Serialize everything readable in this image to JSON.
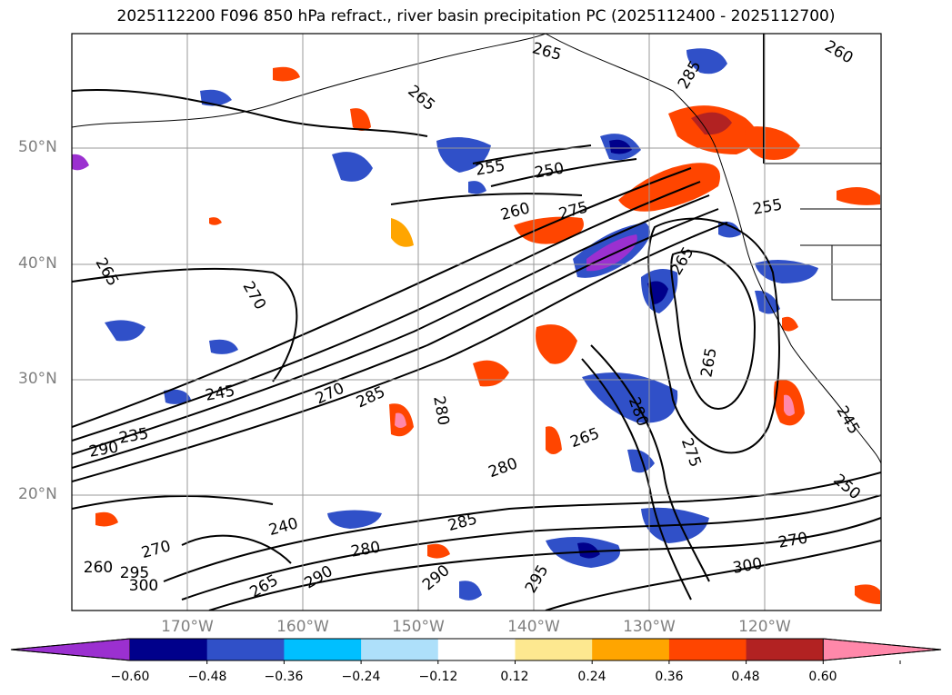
{
  "title": "2025112200 F096 850 hPa refract., river basin precipitation PC (2025112400 - 2025112700)",
  "lat_labels": [
    "50°N",
    "40°N",
    "30°N",
    "20°N"
  ],
  "lon_labels": [
    "170°W",
    "160°W",
    "150°W",
    "140°W",
    "130°W",
    "120°W"
  ],
  "colorbar": {
    "ticks": [
      "−0.60",
      "−0.48",
      "−0.36",
      "−0.24",
      "−0.12",
      "0.12",
      "0.24",
      "0.36",
      "0.48",
      "0.60"
    ],
    "colors": [
      "#9b30d0",
      "#00008b",
      "#3050c8",
      "#00bfff",
      "#aee0fa",
      "#ffffff",
      "#fde890",
      "#ffa500",
      "#ff4500",
      "#b22222",
      "#ff88aa"
    ]
  },
  "contour_labels": [
    "265",
    "260",
    "265",
    "255",
    "250",
    "260",
    "275",
    "255",
    "265",
    "270",
    "265",
    "245",
    "270",
    "285",
    "280",
    "265",
    "235",
    "290",
    "280",
    "265",
    "280",
    "275",
    "250",
    "240",
    "285",
    "270",
    "280",
    "270",
    "260",
    "290",
    "295",
    "300",
    "265",
    "290",
    "295",
    "300",
    "285",
    "245"
  ]
}
